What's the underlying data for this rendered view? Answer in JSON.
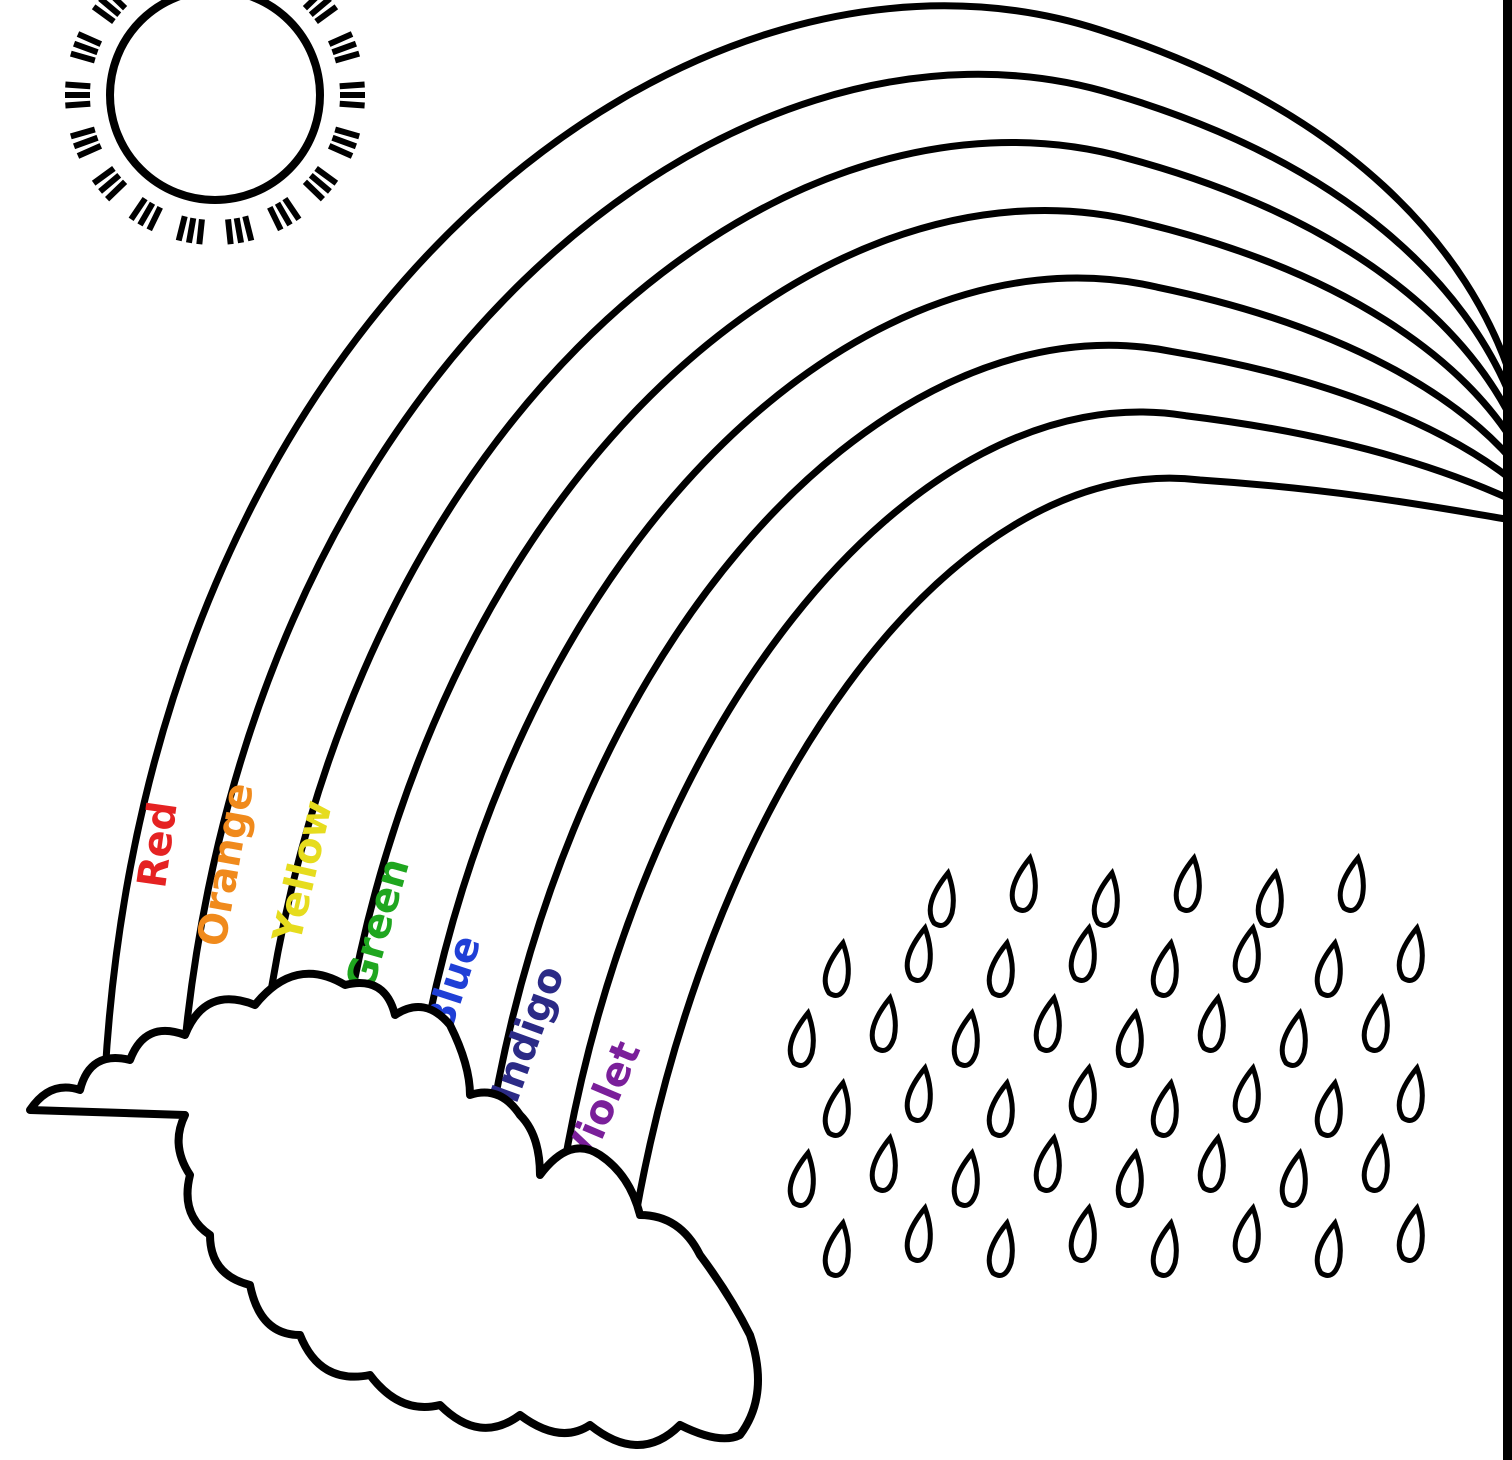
{
  "labels": [
    {
      "text": "Red",
      "color": "#e52222"
    },
    {
      "text": "Orange",
      "color": "#f08a1c"
    },
    {
      "text": "Yellow",
      "color": "#e6dc1e"
    },
    {
      "text": "Green",
      "color": "#1fa61f"
    },
    {
      "text": "Blue",
      "color": "#1f3fd6"
    },
    {
      "text": "Indigo",
      "color": "#2b2a86"
    },
    {
      "text": "Violet",
      "color": "#7a1f9a"
    }
  ]
}
